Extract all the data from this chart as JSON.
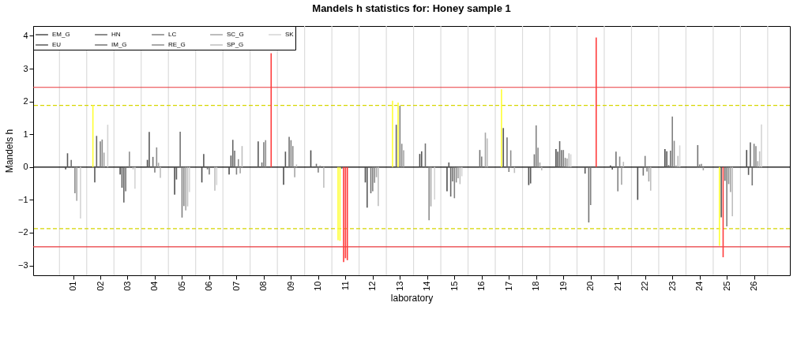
{
  "chart_data": {
    "type": "bar",
    "title": "Mandels h statistics for: Honey sample 1",
    "xlabel": "laboratory",
    "ylabel": "Mandels h",
    "categories": [
      "01",
      "02",
      "03",
      "04",
      "05",
      "06",
      "07",
      "08",
      "09",
      "10",
      "11",
      "12",
      "13",
      "14",
      "15",
      "16",
      "17",
      "18",
      "19",
      "20",
      "21",
      "22",
      "23",
      "24",
      "25",
      "26"
    ],
    "series": [
      {
        "name": "EM_G",
        "color": "#4d4d4d",
        "values": [
          -0.07,
          1.89,
          -0.23,
          0.22,
          -0.84,
          -0.47,
          -0.23,
          null,
          -0.54,
          0.51,
          -2.23,
          -0.47,
          2.02,
          0.4,
          -0.74,
          null,
          2.37,
          -0.55,
          0.55,
          null,
          0.05,
          -1.0,
          0.55,
          null,
          -2.4,
          0.52
        ],
        "colors": [
          "#4d4d4d",
          "#ffff33",
          "#4d4d4d",
          "#4d4d4d",
          "#4d4d4d",
          "#4d4d4d",
          "#4d4d4d",
          "#4d4d4d",
          "#4d4d4d",
          "#4d4d4d",
          "#ffff33",
          "#4d4d4d",
          "#ffff33",
          "#4d4d4d",
          "#4d4d4d",
          "#4d4d4d",
          "#ffff33",
          "#4d4d4d",
          "#4d4d4d",
          "#4d4d4d",
          "#4d4d4d",
          "#4d4d4d",
          "#4d4d4d",
          "#4d4d4d",
          "#ffff33",
          "#4d4d4d"
        ]
      },
      {
        "name": "EU",
        "color": "#595959",
        "values": [
          0.42,
          -0.47,
          -0.63,
          1.07,
          -0.38,
          0.4,
          0.35,
          0.78,
          0.47,
          0.02,
          -2.25,
          -1.24,
          null,
          0.48,
          0.14,
          null,
          1.19,
          -0.5,
          0.47,
          -0.2,
          -0.08,
          null,
          0.48,
          null,
          -1.53,
          -0.24
        ],
        "colors": [
          "#595959",
          "#595959",
          "#595959",
          "#595959",
          "#595959",
          "#595959",
          "#595959",
          "#595959",
          "#595959",
          "#595959",
          "#ffff33",
          "#595959",
          "#595959",
          "#595959",
          "#595959",
          "#595959",
          "#595959",
          "#595959",
          "#595959",
          "#595959",
          "#595959",
          "#595959",
          "#595959",
          "#595959",
          "#595959",
          "#595959"
        ]
      },
      {
        "name": "HN",
        "color": "#666666",
        "values": [
          null,
          0.95,
          -1.08,
          null,
          null,
          null,
          0.83,
          null,
          null,
          null,
          -0.05,
          null,
          1.29,
          null,
          -0.9,
          null,
          null,
          null,
          0.79,
          null,
          null,
          null,
          0.06,
          null,
          -2.75,
          0.75
        ],
        "colors": [
          "#666666",
          "#666666",
          "#666666",
          "#666666",
          "#666666",
          "#666666",
          "#666666",
          "#666666",
          "#666666",
          "#666666",
          "#666666",
          "#666666",
          "#666666",
          "#666666",
          "#666666",
          "#666666",
          "#666666",
          "#666666",
          "#666666",
          "#666666",
          "#666666",
          "#666666",
          "#666666",
          "#666666",
          "#ff3b3b",
          "#666666"
        ]
      },
      {
        "name": "IM_G",
        "color": "#737373",
        "values": [
          0.22,
          null,
          -0.74,
          0.31,
          1.08,
          -0.07,
          0.5,
          0.14,
          0.92,
          0.1,
          -2.9,
          -0.8,
          1.97,
          0.72,
          -0.44,
          0.52,
          0.9,
          0.39,
          0.52,
          -1.69,
          0.47,
          -0.26,
          0.5,
          0.67,
          -0.42,
          -0.56
        ],
        "colors": [
          "#737373",
          "#737373",
          "#737373",
          "#737373",
          "#737373",
          "#737373",
          "#737373",
          "#737373",
          "#737373",
          "#737373",
          "#ff3b3b",
          "#737373",
          "#ffff33",
          "#737373",
          "#737373",
          "#737373",
          "#737373",
          "#737373",
          "#737373",
          "#737373",
          "#737373",
          "#737373",
          "#737373",
          "#737373",
          "#737373",
          "#737373"
        ]
      },
      {
        "name": "LC",
        "color": "#808080",
        "values": [
          null,
          0.78,
          null,
          -0.17,
          -1.54,
          -0.23,
          -0.23,
          0.76,
          0.82,
          -0.17,
          -2.78,
          -0.74,
          1.87,
          null,
          -0.95,
          0.32,
          -0.15,
          1.27,
          0.52,
          -1.16,
          -0.74,
          0.34,
          1.54,
          0.08,
          -1.81,
          0.71
        ],
        "colors": [
          "#808080",
          "#808080",
          "#808080",
          "#808080",
          "#808080",
          "#808080",
          "#808080",
          "#808080",
          "#808080",
          "#808080",
          "#ff3b3b",
          "#808080",
          "#808080",
          "#808080",
          "#808080",
          "#808080",
          "#808080",
          "#808080",
          "#808080",
          "#808080",
          "#808080",
          "#808080",
          "#808080",
          "#808080",
          "#808080",
          "#808080"
        ]
      },
      {
        "name": "RE_G",
        "color": "#8c8c8c",
        "values": [
          -0.8,
          0.84,
          0.47,
          0.6,
          -1.19,
          null,
          0.24,
          0.82,
          0.64,
          0.04,
          -2.84,
          -0.48,
          0.71,
          -1.62,
          -0.47,
          null,
          0.51,
          0.59,
          0.28,
          null,
          0.32,
          -0.14,
          0.8,
          0.1,
          -0.52,
          0.64
        ],
        "colors": [
          "#8c8c8c",
          "#8c8c8c",
          "#8c8c8c",
          "#8c8c8c",
          "#8c8c8c",
          "#8c8c8c",
          "#8c8c8c",
          "#8c8c8c",
          "#8c8c8c",
          "#8c8c8c",
          "#ff3b3b",
          "#8c8c8c",
          "#8c8c8c",
          "#8c8c8c",
          "#8c8c8c",
          "#8c8c8c",
          "#8c8c8c",
          "#8c8c8c",
          "#8c8c8c",
          "#8c8c8c",
          "#8c8c8c",
          "#8c8c8c",
          "#8c8c8c",
          "#8c8c8c",
          "#8c8c8c",
          "#8c8c8c"
        ]
      },
      {
        "name": "SC_G",
        "color": "#a6a6a6",
        "values": [
          -1.03,
          0.44,
          null,
          0.13,
          -1.32,
          null,
          -0.19,
          null,
          -0.31,
          null,
          null,
          -0.31,
          0.51,
          -1.2,
          -0.34,
          1.05,
          null,
          0.14,
          0.26,
          null,
          -0.54,
          -0.44,
          0.05,
          -0.1,
          -0.76,
          0.18
        ]
      },
      {
        "name": "SP_G",
        "color": "#bfbfbf",
        "values": [
          null,
          null,
          -0.07,
          -0.33,
          -1.2,
          -0.72,
          0.64,
          null,
          0.08,
          -0.63,
          null,
          -1.19,
          null,
          null,
          -0.52,
          0.87,
          -0.18,
          -0.1,
          0.42,
          3.95,
          0.16,
          -0.72,
          0.34,
          null,
          -1.5,
          0.48
        ],
        "colors": [
          "#bfbfbf",
          "#bfbfbf",
          "#bfbfbf",
          "#bfbfbf",
          "#bfbfbf",
          "#bfbfbf",
          "#bfbfbf",
          "#bfbfbf",
          "#bfbfbf",
          "#bfbfbf",
          "#bfbfbf",
          "#bfbfbf",
          "#bfbfbf",
          "#bfbfbf",
          "#bfbfbf",
          "#bfbfbf",
          "#bfbfbf",
          "#bfbfbf",
          "#bfbfbf",
          "#ff3b3b",
          "#bfbfbf",
          "#bfbfbf",
          "#bfbfbf",
          "#bfbfbf",
          "#bfbfbf",
          "#bfbfbf"
        ]
      },
      {
        "name": "SK",
        "color": "#d4d4d4",
        "values": [
          -1.57,
          1.29,
          -0.66,
          null,
          -0.76,
          -0.55,
          null,
          3.47,
          null,
          null,
          null,
          null,
          null,
          -0.99,
          -0.28,
          null,
          null,
          null,
          0.39,
          null,
          null,
          null,
          0.66,
          null,
          null,
          1.3
        ],
        "colors": [
          "#d4d4d4",
          "#d4d4d4",
          "#d4d4d4",
          "#d4d4d4",
          "#d4d4d4",
          "#d4d4d4",
          "#d4d4d4",
          "#ff3b3b",
          "#d4d4d4",
          "#d4d4d4",
          "#d4d4d4",
          "#d4d4d4",
          "#d4d4d4",
          "#d4d4d4",
          "#d4d4d4",
          "#d4d4d4",
          "#d4d4d4",
          "#d4d4d4",
          "#d4d4d4",
          "#d4d4d4",
          "#d4d4d4",
          "#d4d4d4",
          "#d4d4d4",
          "#d4d4d4",
          "#d4d4d4",
          "#d4d4d4"
        ]
      }
    ],
    "ylim": [
      -3.3,
      4.3
    ],
    "yticks": [
      -3,
      -2,
      -1,
      0,
      1,
      2,
      3,
      4
    ],
    "ref_lines": [
      {
        "axis": "y",
        "value": 0,
        "color": "#000000",
        "line_style": "solid"
      },
      {
        "axis": "y",
        "value": 1.88,
        "color": "#d6d600",
        "line_style": "dashed"
      },
      {
        "axis": "y",
        "value": -1.88,
        "color": "#d6d600",
        "line_style": "dashed"
      },
      {
        "axis": "y",
        "value": 2.43,
        "color": "#e8393d",
        "line_style": "solid"
      },
      {
        "axis": "y",
        "value": -2.43,
        "color": "#e8393d",
        "line_style": "solid"
      }
    ],
    "grid": "x",
    "legend": "top left"
  }
}
